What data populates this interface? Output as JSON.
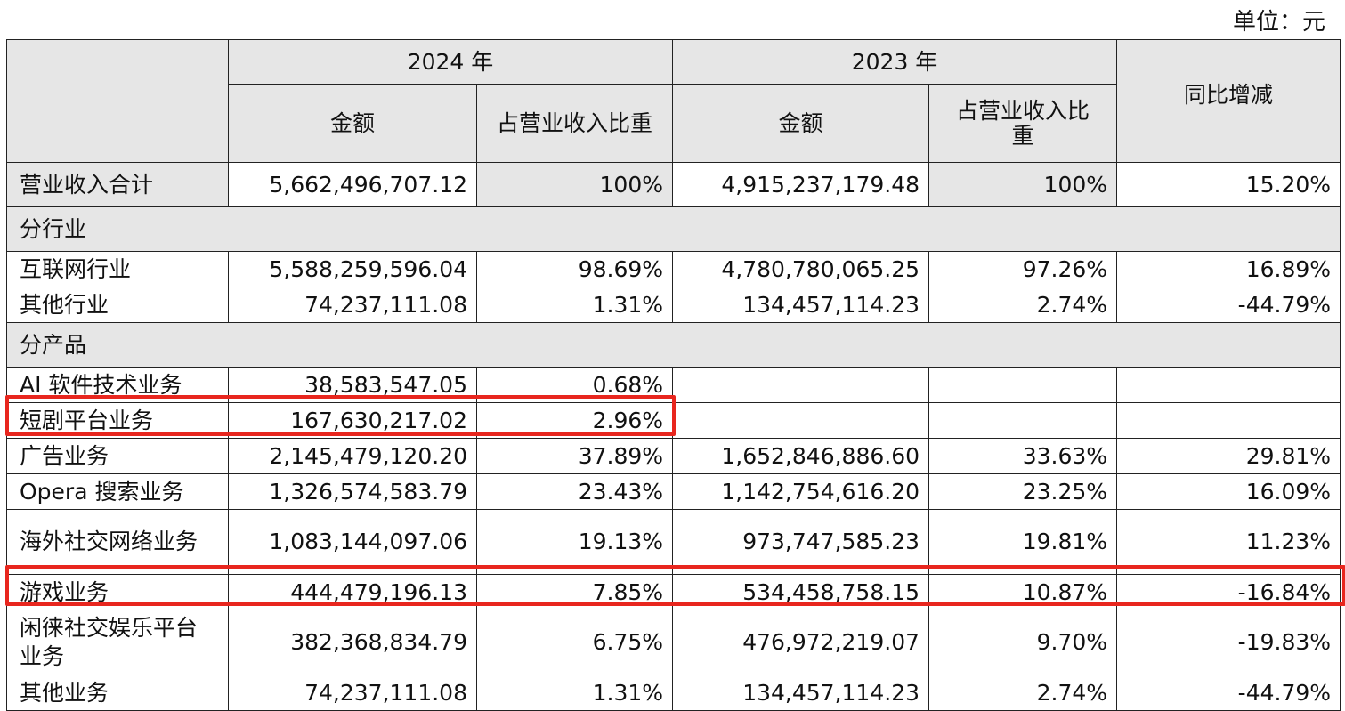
{
  "unit_label": "单位：元",
  "header": {
    "year_2024": "2024 年",
    "year_2023": "2023 年",
    "amount": "金额",
    "ratio": "占营业收入比重",
    "yoy": "同比增减"
  },
  "total_row": {
    "label": "营业收入合计",
    "amt_2024": "5,662,496,707.12",
    "pct_2024": "100%",
    "amt_2023": "4,915,237,179.48",
    "pct_2023": "100%",
    "yoy": "15.20%"
  },
  "section_industry": "分行业",
  "industry_rows": [
    {
      "label": "互联网行业",
      "amt_2024": "5,588,259,596.04",
      "pct_2024": "98.69%",
      "amt_2023": "4,780,780,065.25",
      "pct_2023": "97.26%",
      "yoy": "16.89%"
    },
    {
      "label": "其他行业",
      "amt_2024": "74,237,111.08",
      "pct_2024": "1.31%",
      "amt_2023": "134,457,114.23",
      "pct_2023": "2.74%",
      "yoy": "-44.79%"
    }
  ],
  "section_product": "分产品",
  "product_rows": [
    {
      "label": "AI 软件技术业务",
      "amt_2024": "38,583,547.05",
      "pct_2024": "0.68%",
      "amt_2023": "",
      "pct_2023": "",
      "yoy": ""
    },
    {
      "label": "短剧平台业务",
      "amt_2024": "167,630,217.02",
      "pct_2024": "2.96%",
      "amt_2023": "",
      "pct_2023": "",
      "yoy": ""
    },
    {
      "label": "广告业务",
      "amt_2024": "2,145,479,120.20",
      "pct_2024": "37.89%",
      "amt_2023": "1,652,846,886.60",
      "pct_2023": "33.63%",
      "yoy": "29.81%"
    },
    {
      "label": "Opera 搜索业务",
      "amt_2024": "1,326,574,583.79",
      "pct_2024": "23.43%",
      "amt_2023": "1,142,754,616.20",
      "pct_2023": "23.25%",
      "yoy": "16.09%"
    },
    {
      "label": "海外社交网络业务",
      "amt_2024": "1,083,144,097.06",
      "pct_2024": "19.13%",
      "amt_2023": "973,747,585.23",
      "pct_2023": "19.81%",
      "yoy": "11.23%"
    },
    {
      "label": "游戏业务",
      "amt_2024": "444,479,196.13",
      "pct_2024": "7.85%",
      "amt_2023": "534,458,758.15",
      "pct_2023": "10.87%",
      "yoy": "-16.84%"
    },
    {
      "label": "闲徕社交娱乐平台业务",
      "amt_2024": "382,368,834.79",
      "pct_2024": "6.75%",
      "amt_2023": "476,972,219.07",
      "pct_2023": "9.70%",
      "yoy": "-19.83%"
    },
    {
      "label": "其他业务",
      "amt_2024": "74,237,111.08",
      "pct_2024": "1.31%",
      "amt_2023": "134,457,114.23",
      "pct_2023": "2.74%",
      "yoy": "-44.79%"
    }
  ],
  "highlight_color": "#e8261e"
}
